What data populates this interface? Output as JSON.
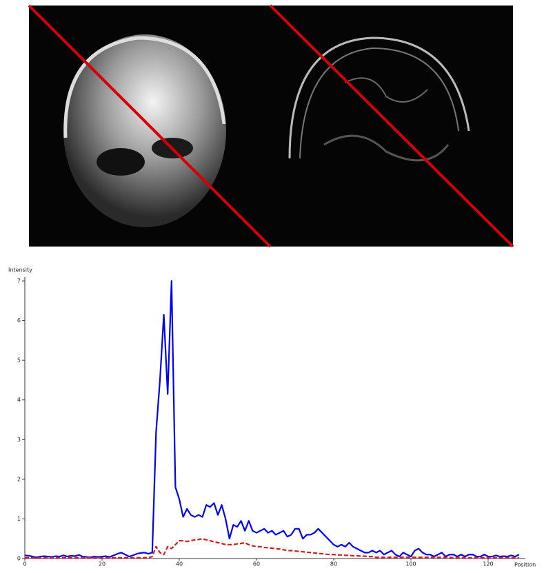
{
  "chart_data": {
    "type": "line",
    "x_label": "Position",
    "y_label": "Intensity",
    "x": [
      0,
      1,
      2,
      3,
      4,
      5,
      6,
      7,
      8,
      9,
      10,
      11,
      12,
      13,
      14,
      15,
      16,
      17,
      18,
      19,
      20,
      21,
      22,
      23,
      24,
      25,
      26,
      27,
      28,
      29,
      30,
      31,
      32,
      33,
      34,
      35,
      36,
      37,
      38,
      39,
      40,
      41,
      42,
      43,
      44,
      45,
      46,
      47,
      48,
      49,
      50,
      51,
      52,
      53,
      54,
      55,
      56,
      57,
      58,
      59,
      60,
      61,
      62,
      63,
      64,
      65,
      66,
      67,
      68,
      69,
      70,
      71,
      72,
      73,
      74,
      75,
      76,
      77,
      78,
      79,
      80,
      81,
      82,
      83,
      84,
      85,
      86,
      87,
      88,
      89,
      90,
      91,
      92,
      93,
      94,
      95,
      96,
      97,
      98,
      99,
      100,
      101,
      102,
      103,
      104,
      105,
      106,
      107,
      108,
      109,
      110,
      111,
      112,
      113,
      114,
      115,
      116,
      117,
      118,
      119,
      120,
      121,
      122,
      123,
      124,
      125,
      126,
      127,
      128
    ],
    "series": [
      {
        "color": "#0000ff",
        "dashed": false,
        "values": [
          0.08,
          0.07,
          0.05,
          0.03,
          0.05,
          0.06,
          0.05,
          0.04,
          0.06,
          0.05,
          0.08,
          0.05,
          0.07,
          0.06,
          0.09,
          0.05,
          0.04,
          0.03,
          0.05,
          0.04,
          0.05,
          0.06,
          0.04,
          0.08,
          0.12,
          0.15,
          0.1,
          0.05,
          0.08,
          0.12,
          0.14,
          0.15,
          0.12,
          0.15,
          3.2,
          4.5,
          6.15,
          4.15,
          7.0,
          1.8,
          1.5,
          1.05,
          1.25,
          1.1,
          1.05,
          1.1,
          1.05,
          1.35,
          1.3,
          1.4,
          1.1,
          1.35,
          1.0,
          0.5,
          0.85,
          0.8,
          0.95,
          0.7,
          0.95,
          0.7,
          0.65,
          0.7,
          0.75,
          0.65,
          0.7,
          0.6,
          0.65,
          0.7,
          0.55,
          0.6,
          0.75,
          0.75,
          0.5,
          0.6,
          0.6,
          0.65,
          0.75,
          0.65,
          0.55,
          0.45,
          0.35,
          0.3,
          0.35,
          0.3,
          0.4,
          0.3,
          0.25,
          0.2,
          0.15,
          0.15,
          0.2,
          0.15,
          0.2,
          0.1,
          0.15,
          0.2,
          0.1,
          0.05,
          0.15,
          0.1,
          0.05,
          0.2,
          0.25,
          0.15,
          0.1,
          0.1,
          0.05,
          0.1,
          0.15,
          0.05,
          0.1,
          0.1,
          0.05,
          0.1,
          0.05,
          0.1,
          0.1,
          0.05,
          0.05,
          0.1,
          0.05,
          0.05,
          0.08,
          0.05,
          0.06,
          0.05,
          0.08,
          0.05,
          0.1
        ]
      },
      {
        "color": "#e01818",
        "dashed": true,
        "values": [
          0.02,
          0.02,
          0.02,
          0.02,
          0.02,
          0.02,
          0.02,
          0.02,
          0.02,
          0.02,
          0.02,
          0.02,
          0.02,
          0.02,
          0.02,
          0.02,
          0.02,
          0.02,
          0.02,
          0.02,
          0.02,
          0.02,
          0.02,
          0.02,
          0.02,
          0.02,
          0.02,
          0.02,
          0.02,
          0.02,
          0.02,
          0.02,
          0.02,
          0.05,
          0.3,
          0.15,
          0.1,
          0.3,
          0.25,
          0.35,
          0.45,
          0.45,
          0.43,
          0.45,
          0.47,
          0.48,
          0.5,
          0.47,
          0.45,
          0.42,
          0.4,
          0.38,
          0.35,
          0.35,
          0.35,
          0.37,
          0.38,
          0.4,
          0.35,
          0.32,
          0.3,
          0.3,
          0.28,
          0.27,
          0.26,
          0.25,
          0.24,
          0.22,
          0.2,
          0.2,
          0.19,
          0.18,
          0.17,
          0.16,
          0.15,
          0.14,
          0.13,
          0.12,
          0.11,
          0.1,
          0.1,
          0.09,
          0.09,
          0.08,
          0.08,
          0.07,
          0.07,
          0.06,
          0.06,
          0.05,
          0.05,
          0.03,
          0.03,
          0.03,
          0.03,
          0.03,
          0.03,
          0.03,
          0.03,
          0.03,
          0.03,
          0.03,
          0.03,
          0.03,
          0.03,
          0.03,
          0.03,
          0.03,
          0.03,
          0.03,
          0.03,
          0.02,
          0.02,
          0.02,
          0.02,
          0.02,
          0.02,
          0.02,
          0.02,
          0.02,
          0.02,
          0.02,
          0.02,
          0.02,
          0.02,
          0.02,
          0.02,
          0.02,
          0.02
        ]
      }
    ],
    "xlim": [
      0,
      130
    ],
    "xticks": [
      0,
      20,
      40,
      60,
      80,
      100,
      120
    ],
    "ylim": [
      0,
      7
    ],
    "yticks": [
      0,
      1,
      2,
      3,
      4,
      5,
      6,
      7
    ]
  }
}
